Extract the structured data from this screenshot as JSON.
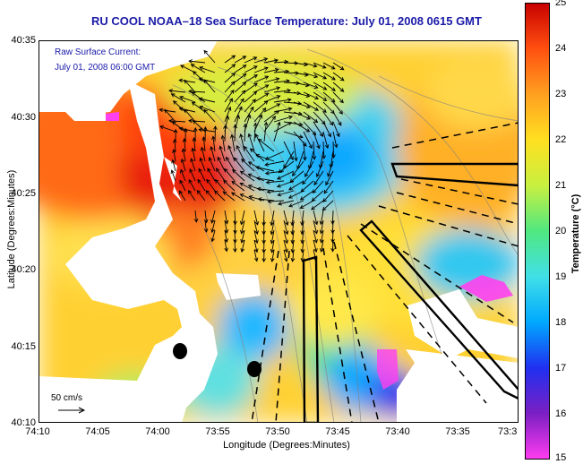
{
  "title": "RU COOL  NOAA–18  Sea Surface Temperature:  July 01, 2008 0615 GMT",
  "legend": {
    "line1": "Raw Surface Current:",
    "line2": "July 01, 2008 06:00 GMT"
  },
  "scale": {
    "label": "50 cm/s"
  },
  "axes": {
    "xlabel": "Longitude (Degrees:Minutes)",
    "ylabel": "Latitude (Degrees:Minutes)",
    "xticks": [
      "74:10",
      "74:05",
      "74:00",
      "73:55",
      "73:50",
      "73:45",
      "73:40",
      "73:35",
      "73:3"
    ],
    "yticks": [
      "40:35",
      "40:30",
      "40:25",
      "40:20",
      "40:15",
      "40:10"
    ]
  },
  "colorbar": {
    "title": "Temperature (°C)",
    "ticks": [
      "25",
      "24",
      "23",
      "22",
      "21",
      "20",
      "19",
      "18",
      "17",
      "16",
      "15"
    ],
    "min": 15,
    "max": 25,
    "colors": [
      "#ff3cf0",
      "#7b1fc4",
      "#2030f0",
      "#00a8ff",
      "#40e0e8",
      "#50e880",
      "#c8f040",
      "#ffe020",
      "#ffa020",
      "#ff5010",
      "#c80000"
    ]
  }
}
